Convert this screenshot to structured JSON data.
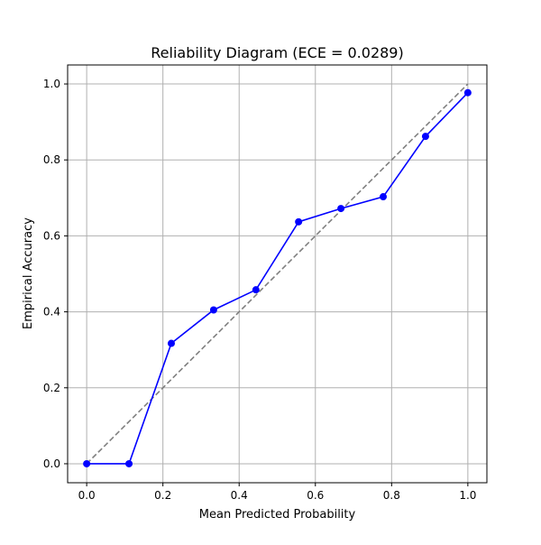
{
  "chart_data": {
    "type": "line",
    "title": "Reliability Diagram (ECE = 0.0289)",
    "xlabel": "Mean Predicted Probability",
    "ylabel": "Empirical Accuracy",
    "xlim": [
      -0.05,
      1.05
    ],
    "ylim": [
      -0.05,
      1.05
    ],
    "grid": true,
    "xticks": [
      "0.0",
      "0.2",
      "0.4",
      "0.6",
      "0.8",
      "1.0"
    ],
    "yticks": [
      "0.0",
      "0.2",
      "0.4",
      "0.6",
      "0.8",
      "1.0"
    ],
    "series": [
      {
        "style": "solid",
        "marker": "circle",
        "color": "#0000ff",
        "x": [
          0.0,
          0.111,
          0.222,
          0.333,
          0.444,
          0.556,
          0.667,
          0.778,
          0.889,
          1.0
        ],
        "y": [
          0.0,
          0.0,
          0.317,
          0.405,
          0.458,
          0.637,
          0.672,
          0.703,
          0.862,
          0.977
        ]
      },
      {
        "style": "dashed",
        "color": "#808080",
        "x": [
          0.0,
          1.0
        ],
        "y": [
          0.0,
          1.0
        ]
      }
    ]
  }
}
